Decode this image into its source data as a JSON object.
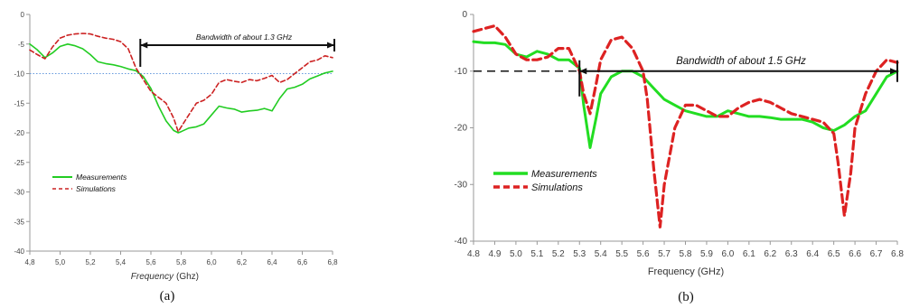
{
  "chart_data": [
    {
      "type": "line",
      "caption": "(a)",
      "xlabel": "Frequency",
      "xlabel_unit": "(Ghz)",
      "xlim": [
        4.8,
        6.8
      ],
      "ylim": [
        -40,
        0
      ],
      "xticks": [
        "4,8",
        "5,0",
        "5,2",
        "5,4",
        "5,6",
        "5,8",
        "6,0",
        "6,2",
        "6,4",
        "6,6",
        "6,8"
      ],
      "yticks": [
        "0",
        "-5",
        "-10",
        "-15",
        "-20",
        "-25",
        "-30",
        "-35",
        "-40"
      ],
      "grid": false,
      "legend_position": "lower-left",
      "reference_line": {
        "y": -10,
        "style": "dotted"
      },
      "annotation": {
        "text": "Bandwidth of about 1.3 GHz",
        "x_start": 5.53,
        "x_end": 6.82,
        "y": -5.3
      },
      "series": [
        {
          "name": "Measurements",
          "color": "#22cc22",
          "style": "solid",
          "x": [
            4.8,
            4.85,
            4.9,
            4.95,
            5.0,
            5.05,
            5.1,
            5.15,
            5.2,
            5.25,
            5.3,
            5.35,
            5.4,
            5.45,
            5.5,
            5.55,
            5.6,
            5.65,
            5.7,
            5.75,
            5.78,
            5.8,
            5.85,
            5.9,
            5.95,
            6.0,
            6.05,
            6.1,
            6.15,
            6.2,
            6.25,
            6.3,
            6.35,
            6.4,
            6.45,
            6.5,
            6.55,
            6.6,
            6.65,
            6.7,
            6.75,
            6.8
          ],
          "y": [
            -5.0,
            -6.0,
            -7.3,
            -6.5,
            -5.4,
            -5.0,
            -5.3,
            -5.8,
            -6.8,
            -8.0,
            -8.3,
            -8.5,
            -8.8,
            -9.2,
            -9.5,
            -10.5,
            -12.5,
            -15.5,
            -18.0,
            -19.6,
            -20.0,
            -19.8,
            -19.2,
            -19.0,
            -18.5,
            -17.0,
            -15.5,
            -15.8,
            -16.0,
            -16.5,
            -16.3,
            -16.2,
            -15.9,
            -16.3,
            -14.2,
            -12.6,
            -12.3,
            -11.8,
            -10.9,
            -10.4,
            -9.9,
            -9.6
          ]
        },
        {
          "name": "Simulations",
          "color": "#cc2222",
          "style": "dashed",
          "x": [
            4.8,
            4.85,
            4.9,
            4.95,
            5.0,
            5.05,
            5.1,
            5.15,
            5.2,
            5.25,
            5.3,
            5.35,
            5.4,
            5.45,
            5.5,
            5.55,
            5.6,
            5.65,
            5.7,
            5.75,
            5.78,
            5.8,
            5.85,
            5.9,
            5.95,
            6.0,
            6.05,
            6.1,
            6.15,
            6.2,
            6.25,
            6.3,
            6.35,
            6.4,
            6.45,
            6.5,
            6.55,
            6.6,
            6.65,
            6.7,
            6.75,
            6.8
          ],
          "y": [
            -6.0,
            -6.8,
            -7.5,
            -5.5,
            -4.0,
            -3.5,
            -3.3,
            -3.2,
            -3.3,
            -3.7,
            -4.0,
            -4.2,
            -4.6,
            -5.8,
            -9.0,
            -11.0,
            -13.0,
            -14.0,
            -15.0,
            -17.5,
            -19.8,
            -19.0,
            -17.0,
            -15.0,
            -14.5,
            -13.5,
            -11.5,
            -11.0,
            -11.3,
            -11.5,
            -11.0,
            -11.2,
            -10.8,
            -10.3,
            -11.5,
            -11.0,
            -10.0,
            -9.0,
            -8.0,
            -7.7,
            -7.0,
            -7.3
          ]
        }
      ]
    },
    {
      "type": "line",
      "caption": "(b)",
      "xlabel": "Frequency (GHz)",
      "xlim": [
        4.8,
        6.8
      ],
      "ylim": [
        -40,
        0
      ],
      "xticks": [
        "4.8",
        "4.9",
        "5.0",
        "5.1",
        "5.2",
        "5.3",
        "5.4",
        "5.5",
        "5.6",
        "5.7",
        "5.8",
        "5.9",
        "6.0",
        "6.1",
        "6.2",
        "6.3",
        "6.4",
        "6.5",
        "6.6",
        "6.7",
        "6.8"
      ],
      "yticks": [
        "0",
        "-10",
        "-20",
        "-30",
        "-40"
      ],
      "grid": false,
      "legend_position": "lower-left",
      "reference_line": {
        "y": -10,
        "style": "dashed"
      },
      "annotation": {
        "text": "Bandwidth of about 1.5 GHz",
        "x_start": 5.3,
        "x_end": 6.8,
        "y": -10
      },
      "series": [
        {
          "name": "Measurements",
          "color": "#22dd22",
          "style": "solid",
          "x": [
            4.8,
            4.85,
            4.9,
            4.95,
            5.0,
            5.05,
            5.1,
            5.15,
            5.2,
            5.25,
            5.3,
            5.32,
            5.35,
            5.38,
            5.4,
            5.45,
            5.5,
            5.55,
            5.6,
            5.65,
            5.7,
            5.75,
            5.8,
            5.85,
            5.9,
            5.95,
            6.0,
            6.05,
            6.1,
            6.15,
            6.2,
            6.25,
            6.3,
            6.35,
            6.4,
            6.45,
            6.5,
            6.55,
            6.6,
            6.65,
            6.7,
            6.75,
            6.8
          ],
          "y": [
            -4.8,
            -5.0,
            -5.0,
            -5.3,
            -7.0,
            -7.5,
            -6.5,
            -7.0,
            -8.0,
            -8.0,
            -9.5,
            -16.0,
            -23.5,
            -18.0,
            -14.0,
            -11.0,
            -10.0,
            -10.0,
            -11.0,
            -13.0,
            -15.0,
            -16.0,
            -17.0,
            -17.5,
            -18.0,
            -18.0,
            -17.0,
            -17.5,
            -18.0,
            -18.0,
            -18.2,
            -18.5,
            -18.5,
            -18.5,
            -19.0,
            -20.0,
            -20.5,
            -19.5,
            -18.0,
            -17.0,
            -14.0,
            -11.0,
            -10.0
          ]
        },
        {
          "name": "Simulations",
          "color": "#dd2222",
          "style": "dashed",
          "x": [
            4.8,
            4.85,
            4.9,
            4.95,
            5.0,
            5.05,
            5.1,
            5.15,
            5.2,
            5.25,
            5.3,
            5.32,
            5.35,
            5.38,
            5.4,
            5.45,
            5.5,
            5.55,
            5.6,
            5.62,
            5.65,
            5.68,
            5.7,
            5.75,
            5.8,
            5.85,
            5.9,
            5.95,
            6.0,
            6.05,
            6.1,
            6.15,
            6.2,
            6.25,
            6.3,
            6.35,
            6.4,
            6.45,
            6.5,
            6.52,
            6.55,
            6.58,
            6.6,
            6.65,
            6.7,
            6.75,
            6.8
          ],
          "y": [
            -3.0,
            -2.5,
            -2.0,
            -4.0,
            -7.0,
            -8.0,
            -8.0,
            -7.5,
            -6.0,
            -6.0,
            -10.0,
            -14.0,
            -17.5,
            -12.0,
            -8.0,
            -4.5,
            -4.0,
            -6.0,
            -10.0,
            -15.0,
            -27.0,
            -37.5,
            -30.0,
            -20.0,
            -16.0,
            -16.0,
            -17.0,
            -18.0,
            -18.0,
            -16.5,
            -15.5,
            -15.0,
            -15.5,
            -16.5,
            -17.5,
            -18.0,
            -18.5,
            -19.0,
            -21.0,
            -26.0,
            -35.5,
            -28.0,
            -20.0,
            -14.0,
            -10.0,
            -8.0,
            -8.5
          ]
        }
      ]
    }
  ]
}
